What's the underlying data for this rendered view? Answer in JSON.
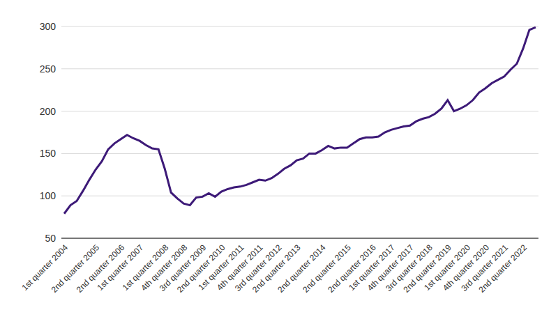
{
  "chart_data": {
    "type": "line",
    "categories": [
      "1st quarter 2004",
      null,
      null,
      null,
      null,
      "2nd quarter 2005",
      null,
      null,
      null,
      "2nd quarter 2006",
      null,
      null,
      "1st quarter 2007",
      null,
      null,
      null,
      "1st quarter 2008",
      null,
      null,
      "4th quarter 2008",
      null,
      null,
      "3rd quarter 2009",
      null,
      null,
      "2nd quarter 2010",
      null,
      null,
      "1st quarter 2011",
      null,
      null,
      "4th quarter 2011",
      null,
      null,
      "3rd quarter 2012",
      null,
      null,
      "2nd quarter 2013",
      null,
      null,
      null,
      "2nd quarter 2014",
      null,
      null,
      null,
      "2nd quarter 2015",
      null,
      null,
      null,
      "2nd quarter 2016",
      null,
      null,
      "1st quarter 2017",
      null,
      null,
      "4th quarter 2017",
      null,
      null,
      "3rd quarter 2018",
      null,
      null,
      "2nd quarter 2019",
      null,
      null,
      "1st quarter 2020",
      null,
      null,
      "4th quarter 2020",
      null,
      null,
      "3rd quarter 2021",
      null,
      null,
      "2nd quarter 2022",
      null,
      null
    ],
    "values": [
      79,
      89,
      94,
      106,
      119,
      131,
      141,
      155,
      162,
      167,
      172,
      168,
      165,
      160,
      156,
      155,
      132,
      104,
      97,
      91,
      89,
      98,
      99,
      103,
      99,
      105,
      108,
      110,
      111,
      113,
      116,
      119,
      118,
      121,
      126,
      132,
      136,
      142,
      144,
      150,
      150,
      154,
      159,
      156,
      157,
      157,
      162,
      167,
      169,
      169,
      170,
      175,
      178,
      180,
      182,
      183,
      188,
      191,
      193,
      197,
      203,
      213,
      200,
      203,
      207,
      213,
      222,
      227,
      233,
      237,
      241,
      249,
      256,
      274,
      296,
      299
    ],
    "color": "#3d1a78",
    "ylim": [
      50,
      300
    ],
    "yticks": [
      50,
      100,
      150,
      200,
      250,
      300
    ],
    "grid": true
  }
}
